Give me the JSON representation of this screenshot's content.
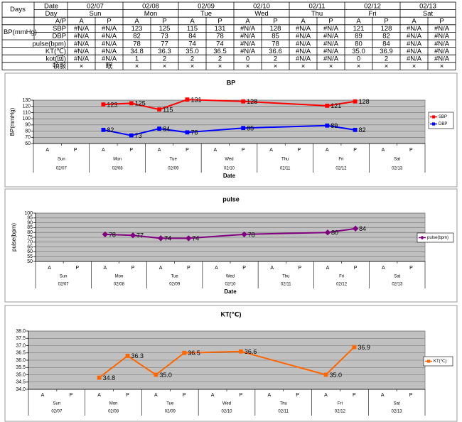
{
  "table": {
    "days_label": "Days",
    "date_label": "Date",
    "dates": [
      "02/07",
      "02/08",
      "02/09",
      "02/10",
      "02/11",
      "02/12",
      "02/13"
    ],
    "day_label": "Day",
    "days": [
      "Sun",
      "Mon",
      "Tue",
      "Wed",
      "Thu",
      "Fri",
      "Sat"
    ],
    "bp_label": "BP(mmHg)",
    "rows": [
      {
        "label": "A/P",
        "cells": [
          "A",
          "P",
          "A",
          "P",
          "A",
          "P",
          "A",
          "P",
          "A",
          "P",
          "A",
          "P",
          "A",
          "P"
        ]
      },
      {
        "label": "SBP",
        "cells": [
          "#N/A",
          "#N/A",
          "123",
          "125",
          "115",
          "131",
          "#N/A",
          "128",
          "#N/A",
          "#N/A",
          "121",
          "128",
          "#N/A",
          "#N/A"
        ]
      },
      {
        "label": "DBP",
        "cells": [
          "#N/A",
          "#N/A",
          "82",
          "73",
          "84",
          "78",
          "#N/A",
          "85",
          "#N/A",
          "#N/A",
          "89",
          "82",
          "#N/A",
          "#N/A"
        ]
      },
      {
        "label": "pulse(bpm)",
        "cells": [
          "#N/A",
          "#N/A",
          "78",
          "77",
          "74",
          "74",
          "#N/A",
          "78",
          "#N/A",
          "#N/A",
          "80",
          "84",
          "#N/A",
          "#N/A"
        ]
      },
      {
        "label": "KT(℃)",
        "cells": [
          "#N/A",
          "#N/A",
          "34.8",
          "36.3",
          "35.0",
          "36.5",
          "#N/A",
          "36.6",
          "#N/A",
          "#N/A",
          "35.0",
          "36.9",
          "#N/A",
          "#N/A"
        ]
      },
      {
        "label": "kot(回)",
        "cells": [
          "#N/A",
          "#N/A",
          "1",
          "2",
          "2",
          "2",
          "0",
          "2",
          "#N/A",
          "#N/A",
          "0",
          "2",
          "#N/A",
          "#N/A"
        ]
      },
      {
        "label": "頓服",
        "cells": [
          "×",
          "眠",
          "×",
          "×",
          "×",
          "×",
          "×",
          "×",
          "×",
          "×",
          "×",
          "×",
          "×",
          "×"
        ]
      }
    ]
  },
  "chart_data": [
    {
      "type": "line",
      "title": "BP",
      "y_label": "BP(mmHg)",
      "x_label": "Date",
      "categories": [
        "A",
        "P",
        "A",
        "P",
        "A",
        "P",
        "A",
        "P",
        "A",
        "P",
        "A",
        "P",
        "A",
        "P"
      ],
      "days": [
        "Sun",
        "Mon",
        "Tue",
        "Wed",
        "Thu",
        "Fri",
        "Sat"
      ],
      "dates": [
        "02/07",
        "02/08",
        "02/09",
        "02/10",
        "02/11",
        "02/12",
        "02/13"
      ],
      "ylim": [
        60,
        130
      ],
      "yticks": [
        60,
        70,
        80,
        90,
        100,
        110,
        120,
        130
      ],
      "grid": true,
      "legend": "right",
      "series": [
        {
          "name": "SBP",
          "color": "#ff0000",
          "marker": "square",
          "values": [
            null,
            null,
            123,
            125,
            115,
            131,
            null,
            128,
            null,
            null,
            121,
            128,
            null,
            null
          ]
        },
        {
          "name": "DBP",
          "color": "#0000ff",
          "marker": "square",
          "values": [
            null,
            null,
            82,
            73,
            84,
            78,
            null,
            85,
            null,
            null,
            89,
            82,
            null,
            null
          ]
        }
      ]
    },
    {
      "type": "line",
      "title": "pulse",
      "y_label": "pulse(bpm)",
      "x_label": "Date",
      "categories": [
        "A",
        "P",
        "A",
        "P",
        "A",
        "P",
        "A",
        "P",
        "A",
        "P",
        "A",
        "P",
        "A",
        "P"
      ],
      "days": [
        "Sun",
        "Mon",
        "Tue",
        "Wed",
        "Thu",
        "Fri",
        "Sat"
      ],
      "dates": [
        "02/07",
        "02/08",
        "02/09",
        "02/10",
        "02/11",
        "02/12",
        "02/13"
      ],
      "ylim": [
        50,
        100
      ],
      "yticks": [
        50,
        55,
        60,
        65,
        70,
        75,
        80,
        85,
        90,
        95,
        100
      ],
      "grid": true,
      "legend": "right",
      "series": [
        {
          "name": "pulse(bpm)",
          "color": "#800080",
          "marker": "diamond",
          "values": [
            null,
            null,
            78,
            77,
            74,
            74,
            null,
            78,
            null,
            null,
            80,
            84,
            null,
            null
          ]
        }
      ]
    },
    {
      "type": "line",
      "title": "KT(℃)",
      "categories": [
        "A",
        "P",
        "A",
        "P",
        "A",
        "P",
        "A",
        "P",
        "A",
        "P",
        "A",
        "P",
        "A",
        "P"
      ],
      "days": [
        "Sun",
        "Mon",
        "Tue",
        "Wed",
        "Thu",
        "Fri",
        "Sat"
      ],
      "dates": [
        "02/07",
        "02/08",
        "02/09",
        "02/10",
        "02/11",
        "02/12",
        "02/13"
      ],
      "ylim": [
        34,
        38
      ],
      "yticks": [
        {
          "value": 34,
          "label": "34.0"
        },
        34.5,
        {
          "value": 35,
          "label": "35.0"
        },
        35.5,
        {
          "value": 36,
          "label": "36.0"
        },
        36.5,
        {
          "value": 37,
          "label": "37.0"
        },
        37.5,
        {
          "value": 38,
          "label": "38.0"
        }
      ],
      "grid": true,
      "legend": "right",
      "series": [
        {
          "name": "KT(℃)",
          "color": "#ff6600",
          "marker": "square",
          "values": [
            null,
            null,
            34.8,
            36.3,
            35,
            36.5,
            null,
            36.6,
            null,
            null,
            35,
            36.9,
            null,
            null
          ],
          "value_labels": [
            null,
            null,
            "34.8",
            "36.3",
            "35.0",
            "36.5",
            null,
            "36.6",
            null,
            null,
            "35.0",
            "36.9",
            null,
            null
          ]
        }
      ]
    }
  ]
}
